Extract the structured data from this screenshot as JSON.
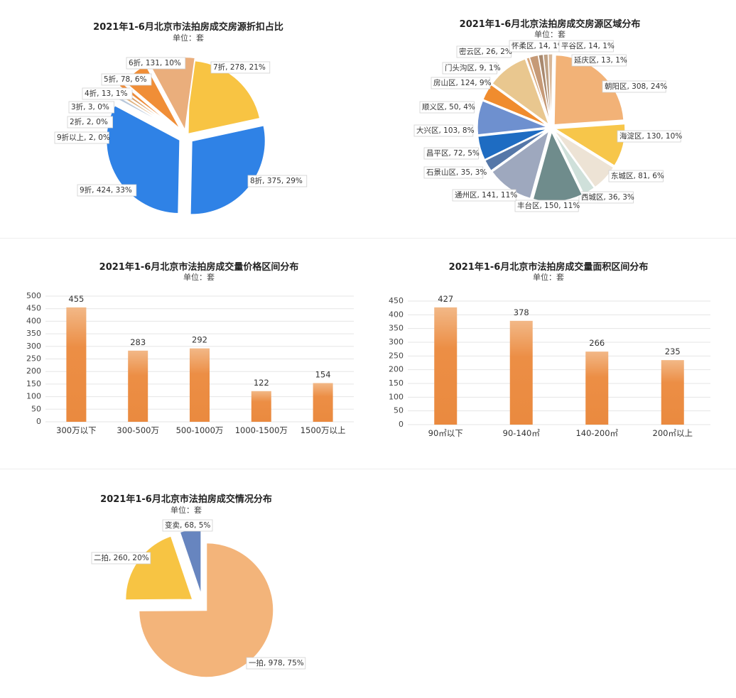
{
  "colors": {
    "orange": "#ED8B3A",
    "orange_light": "#F6BD86",
    "blue": "#2F82E6",
    "yellow": "#F8C443",
    "grid": "#e3e3e3",
    "text": "#333333"
  },
  "chart_data": [
    {
      "type": "pie",
      "title": "2021年1-6月北京市法拍房成交房源折扣占比",
      "subtitle": "单位：套",
      "slices": [
        {
          "name": "7折",
          "value": 278,
          "pct": "21%",
          "color": "#F8C443",
          "label": "7折, 278, 21%"
        },
        {
          "name": "8折",
          "value": 375,
          "pct": "29%",
          "color": "#2F82E6",
          "label": "8折, 375, 29%"
        },
        {
          "name": "9折",
          "value": 424,
          "pct": "33%",
          "color": "#2F82E6",
          "label": "9折, 424, 33%"
        },
        {
          "name": "9折以上",
          "value": 2,
          "pct": "0%",
          "color": "#B8C7DA",
          "label": "9折以上, 2, 0%"
        },
        {
          "name": "2折",
          "value": 2,
          "pct": "0%",
          "color": "#E0B07A",
          "label": "2折, 2, 0%"
        },
        {
          "name": "3折",
          "value": 3,
          "pct": "0%",
          "color": "#D79B62",
          "label": "3折, 3, 0%"
        },
        {
          "name": "4折",
          "value": 13,
          "pct": "1%",
          "color": "#EE8C3A",
          "label": "4折, 13, 1%"
        },
        {
          "name": "5折",
          "value": 78,
          "pct": "6%",
          "color": "#F08E37",
          "label": "5折, 78, 6%"
        },
        {
          "name": "6折",
          "value": 131,
          "pct": "10%",
          "color": "#EAAE7C",
          "label": "6折, 131, 10%"
        }
      ]
    },
    {
      "type": "pie",
      "title": "2021年1-6月北京法拍房成交房源区域分布",
      "subtitle": "单位：套",
      "slices": [
        {
          "name": "朝阳区",
          "value": 308,
          "pct": "24%",
          "color": "#F2B277",
          "label": "朝阳区, 308, 24%"
        },
        {
          "name": "海淀区",
          "value": 130,
          "pct": "10%",
          "color": "#F7C64A",
          "label": "海淀区, 130, 10%"
        },
        {
          "name": "东城区",
          "value": 81,
          "pct": "6%",
          "color": "#EDE3D5",
          "label": "东城区, 81, 6%"
        },
        {
          "name": "西城区",
          "value": 36,
          "pct": "3%",
          "color": "#CFE0DA",
          "label": "西城区, 36, 3%"
        },
        {
          "name": "丰台区",
          "value": 150,
          "pct": "11%",
          "color": "#6F8C8C",
          "label": "丰台区, 150, 11%"
        },
        {
          "name": "通州区",
          "value": 141,
          "pct": "11%",
          "color": "#9EA8BE",
          "label": "通州区, 141, 11%"
        },
        {
          "name": "石景山区",
          "value": 35,
          "pct": "3%",
          "color": "#5577A8",
          "label": "石景山区, 35, 3%"
        },
        {
          "name": "昌平区",
          "value": 72,
          "pct": "5%",
          "color": "#1E6CC2",
          "label": "昌平区, 72, 5%"
        },
        {
          "name": "大兴区",
          "value": 103,
          "pct": "8%",
          "color": "#6E90CF",
          "label": "大兴区, 103, 8%"
        },
        {
          "name": "顺义区",
          "value": 50,
          "pct": "4%",
          "color": "#F08C2E",
          "label": "顺义区, 50, 4%"
        },
        {
          "name": "房山区",
          "value": 124,
          "pct": "9%",
          "color": "#E9C78F",
          "label": "房山区, 124, 9%"
        },
        {
          "name": "门头沟区",
          "value": 9,
          "pct": "1%",
          "color": "#D9A77A",
          "label": "门头沟区, 9, 1%"
        },
        {
          "name": "密云区",
          "value": 26,
          "pct": "2%",
          "color": "#C69A77",
          "label": "密云区, 26, 2%"
        },
        {
          "name": "怀柔区",
          "value": 14,
          "pct": "1%",
          "color": "#A9896E",
          "label": "怀柔区, 14, 1%"
        },
        {
          "name": "平谷区",
          "value": 14,
          "pct": "1%",
          "color": "#C0A285",
          "label": "平谷区, 14, 1%"
        },
        {
          "name": "延庆区",
          "value": 13,
          "pct": "1%",
          "color": "#D8B89A",
          "label": "延庆区, 13, 1%"
        }
      ]
    },
    {
      "type": "bar",
      "title": "2021年1-6月北京市法拍房成交量价格区间分布",
      "subtitle": "单位：套",
      "categories": [
        "300万以下",
        "300-500万",
        "500-1000万",
        "1000-1500万",
        "1500万以上"
      ],
      "values": [
        455,
        283,
        292,
        122,
        154
      ],
      "ylim": [
        0,
        500
      ],
      "yticks": [
        "0",
        "50",
        "100",
        "150",
        "200",
        "250",
        "300",
        "350",
        "400",
        "450",
        "500"
      ]
    },
    {
      "type": "bar",
      "title": "2021年1-6月北京市法拍房成交量面积区间分布",
      "subtitle": "单位：套",
      "categories": [
        "90㎡以下",
        "90-140㎡",
        "140-200㎡",
        "200㎡以上"
      ],
      "values": [
        427,
        378,
        266,
        235
      ],
      "ylim": [
        0,
        450
      ],
      "yticks": [
        "0",
        "50",
        "100",
        "150",
        "200",
        "250",
        "300",
        "350",
        "400",
        "450"
      ]
    },
    {
      "type": "pie",
      "title": "2021年1-6月北京市法拍房成交情况分布",
      "subtitle": "单位：套",
      "slices": [
        {
          "name": "一拍",
          "value": 978,
          "pct": "75%",
          "color": "#F3B47A",
          "label": "一拍, 978, 75%"
        },
        {
          "name": "二拍",
          "value": 260,
          "pct": "20%",
          "color": "#F7C443",
          "label": "二拍, 260, 20%"
        },
        {
          "name": "变卖",
          "value": 68,
          "pct": "5%",
          "color": "#6785BF",
          "label": "变卖, 68, 5%"
        }
      ]
    }
  ]
}
